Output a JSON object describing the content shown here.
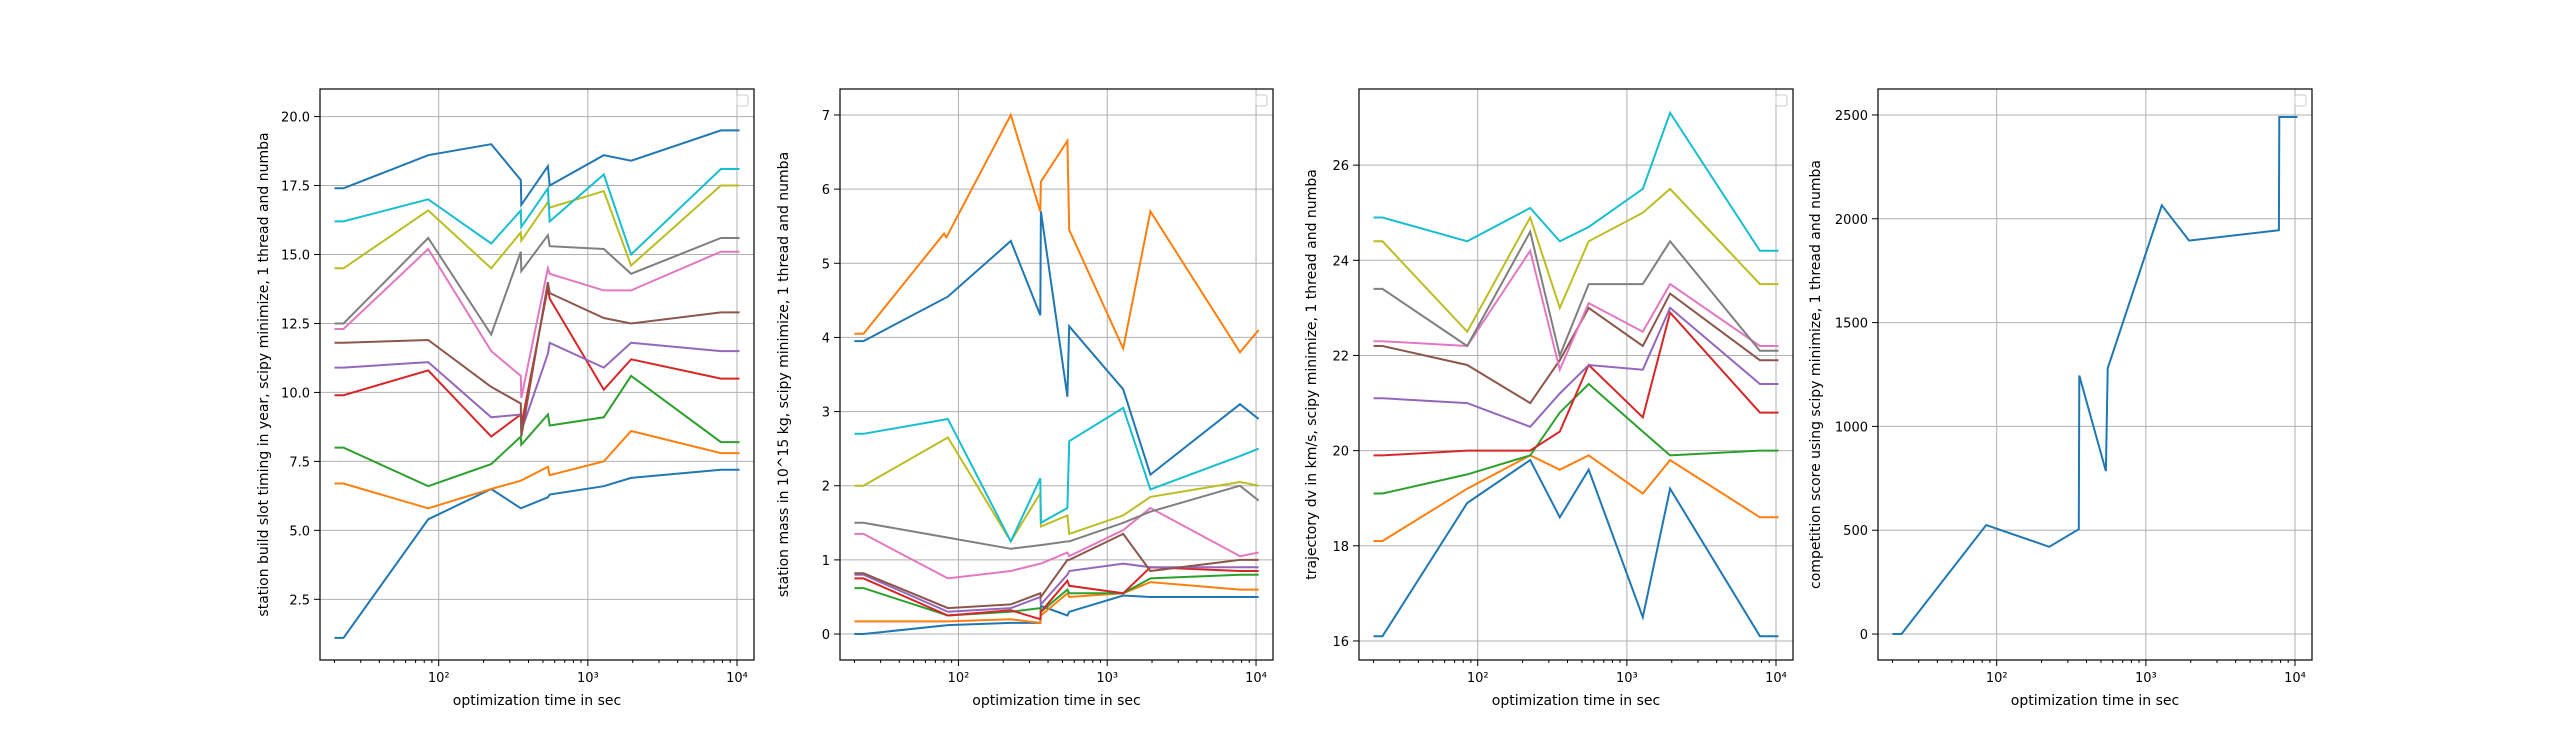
{
  "colors": [
    "#1f77b4",
    "#ff7f0e",
    "#2ca02c",
    "#d62728",
    "#9467bd",
    "#8c564b",
    "#e377c2",
    "#7f7f7f",
    "#bcbd22",
    "#17becf"
  ],
  "chart_data": [
    {
      "type": "line",
      "xscale": "log",
      "xlim": [
        16,
        13000
      ],
      "ylim": [
        0.3,
        21.0
      ],
      "xticks": [
        100,
        1000,
        10000
      ],
      "xtick_labels": [
        "10²",
        "10³",
        "10⁴"
      ],
      "yticks": [
        2.5,
        5.0,
        7.5,
        10.0,
        12.5,
        15.0,
        17.5,
        20.0
      ],
      "ytick_labels": [
        "2.5",
        "5.0",
        "7.5",
        "10.0",
        "12.5",
        "15.0",
        "17.5",
        "20.0"
      ],
      "xlabel": "optimization time in sec",
      "ylabel": "station build slot timing in year, scipy minimize, 1 thread and numba",
      "grid": true,
      "legend": "top-right (empty)",
      "series": [
        {
          "x": [
            20,
            23,
            85,
            225,
            355,
            540,
            555,
            1280,
            1950,
            7800,
            10400
          ],
          "y": [
            1.1,
            1.1,
            5.4,
            6.5,
            5.8,
            6.2,
            6.3,
            6.6,
            6.9,
            7.2,
            7.2
          ]
        },
        {
          "x": [
            20,
            23,
            85,
            225,
            355,
            540,
            555,
            1280,
            1950,
            7800,
            10400
          ],
          "y": [
            6.7,
            6.7,
            5.8,
            6.5,
            6.8,
            7.3,
            7.0,
            7.5,
            8.6,
            7.8,
            7.8
          ]
        },
        {
          "x": [
            20,
            23,
            85,
            225,
            355,
            358,
            540,
            555,
            1280,
            1950,
            7800,
            10400
          ],
          "y": [
            8.0,
            8.0,
            6.6,
            7.4,
            8.4,
            8.1,
            9.2,
            8.8,
            9.1,
            10.6,
            8.2,
            8.2
          ]
        },
        {
          "x": [
            20,
            23,
            85,
            225,
            355,
            358,
            540,
            555,
            1280,
            1950,
            7800,
            10400
          ],
          "y": [
            9.9,
            9.9,
            10.8,
            8.4,
            9.2,
            8.8,
            13.8,
            13.4,
            10.1,
            11.2,
            10.5,
            10.5
          ]
        },
        {
          "x": [
            20,
            23,
            85,
            225,
            355,
            358,
            540,
            555,
            1280,
            1950,
            7800,
            10400
          ],
          "y": [
            10.9,
            10.9,
            11.1,
            9.1,
            9.2,
            8.6,
            11.4,
            11.8,
            10.9,
            11.8,
            11.5,
            11.5
          ]
        },
        {
          "x": [
            20,
            23,
            85,
            225,
            355,
            358,
            540,
            555,
            1280,
            1950,
            7800,
            10400
          ],
          "y": [
            11.8,
            11.8,
            11.9,
            10.2,
            9.6,
            8.4,
            14.0,
            13.6,
            12.7,
            12.5,
            12.9,
            12.9
          ]
        },
        {
          "x": [
            20,
            23,
            85,
            225,
            355,
            358,
            540,
            555,
            1280,
            1950,
            7800,
            10400
          ],
          "y": [
            12.3,
            12.3,
            15.2,
            11.5,
            10.6,
            9.8,
            14.5,
            14.3,
            13.7,
            13.7,
            15.1,
            15.1
          ]
        },
        {
          "x": [
            20,
            23,
            85,
            225,
            355,
            358,
            540,
            555,
            1280,
            1950,
            7800,
            10400
          ],
          "y": [
            12.5,
            12.5,
            15.6,
            12.1,
            15.1,
            14.4,
            15.7,
            15.3,
            15.2,
            14.3,
            15.6,
            15.6
          ]
        },
        {
          "x": [
            20,
            23,
            85,
            225,
            355,
            358,
            540,
            555,
            1280,
            1950,
            7800,
            10400
          ],
          "y": [
            14.5,
            14.5,
            16.6,
            14.5,
            15.8,
            15.5,
            16.9,
            16.7,
            17.3,
            14.6,
            17.5,
            17.5
          ]
        },
        {
          "x": [
            20,
            23,
            85,
            225,
            355,
            358,
            540,
            555,
            1280,
            1950,
            7800,
            10400
          ],
          "y": [
            16.2,
            16.2,
            17.0,
            15.4,
            16.6,
            16.0,
            17.4,
            16.2,
            17.9,
            15.0,
            18.1,
            18.1
          ]
        },
        {
          "x": [
            20,
            23,
            85,
            225,
            355,
            358,
            540,
            555,
            1280,
            1950,
            7800,
            10400
          ],
          "y": [
            17.4,
            17.4,
            18.6,
            19.0,
            17.7,
            16.8,
            18.2,
            17.5,
            18.6,
            18.4,
            19.5,
            19.5
          ]
        }
      ]
    },
    {
      "type": "line",
      "xscale": "log",
      "xlim": [
        16,
        13000
      ],
      "ylim": [
        -0.35,
        7.35
      ],
      "xticks": [
        100,
        1000,
        10000
      ],
      "xtick_labels": [
        "10²",
        "10³",
        "10⁴"
      ],
      "yticks": [
        0,
        1,
        2,
        3,
        4,
        5,
        6,
        7
      ],
      "ytick_labels": [
        "0",
        "1",
        "2",
        "3",
        "4",
        "5",
        "6",
        "7"
      ],
      "xlabel": "optimization time in sec",
      "ylabel": "station mass in 10^15 kg, scipy minimize, 1 thread and numba",
      "grid": true,
      "legend": "top-right (empty)",
      "series": [
        {
          "x": [
            20,
            23,
            85,
            225,
            355,
            358,
            540,
            555,
            1280,
            1950,
            7800,
            10400
          ],
          "y": [
            0.0,
            0.0,
            0.12,
            0.15,
            0.15,
            0.38,
            0.25,
            0.3,
            0.52,
            0.5,
            0.5,
            0.5
          ]
        },
        {
          "x": [
            20,
            23,
            85,
            225,
            355,
            358,
            540,
            555,
            1280,
            1950,
            7800,
            10400
          ],
          "y": [
            0.17,
            0.17,
            0.17,
            0.2,
            0.15,
            0.25,
            0.55,
            0.5,
            0.55,
            0.7,
            0.6,
            0.6
          ]
        },
        {
          "x": [
            20,
            23,
            85,
            225,
            355,
            358,
            540,
            555,
            1280,
            1950,
            7800,
            10400
          ],
          "y": [
            0.62,
            0.62,
            0.25,
            0.3,
            0.35,
            0.3,
            0.6,
            0.55,
            0.55,
            0.75,
            0.8,
            0.8
          ]
        },
        {
          "x": [
            20,
            23,
            85,
            225,
            355,
            358,
            540,
            555,
            1280,
            1950,
            7800,
            10400
          ],
          "y": [
            0.75,
            0.75,
            0.25,
            0.32,
            0.2,
            0.3,
            0.72,
            0.65,
            0.55,
            0.9,
            0.85,
            0.85
          ]
        },
        {
          "x": [
            20,
            23,
            85,
            225,
            355,
            358,
            540,
            555,
            1280,
            1950,
            7800,
            10400
          ],
          "y": [
            0.8,
            0.8,
            0.3,
            0.35,
            0.5,
            0.4,
            0.8,
            0.85,
            0.95,
            0.9,
            0.9,
            0.9
          ]
        },
        {
          "x": [
            20,
            23,
            85,
            225,
            355,
            358,
            540,
            555,
            1280,
            1950,
            7800,
            10400
          ],
          "y": [
            0.82,
            0.82,
            0.35,
            0.4,
            0.55,
            0.5,
            1.0,
            1.0,
            1.35,
            0.85,
            1.0,
            1.0
          ]
        },
        {
          "x": [
            20,
            23,
            85,
            225,
            355,
            358,
            540,
            555,
            1280,
            1950,
            7800,
            10400
          ],
          "y": [
            1.35,
            1.35,
            0.75,
            0.85,
            0.95,
            0.95,
            1.1,
            1.05,
            1.4,
            1.7,
            1.05,
            1.1
          ]
        },
        {
          "x": [
            20,
            23,
            85,
            225,
            355,
            358,
            540,
            555,
            1280,
            1950,
            7800,
            10400
          ],
          "y": [
            1.5,
            1.5,
            1.3,
            1.15,
            1.2,
            1.2,
            1.25,
            1.25,
            1.5,
            1.65,
            2.0,
            1.8
          ]
        },
        {
          "x": [
            20,
            23,
            85,
            225,
            355,
            358,
            540,
            555,
            1280,
            1950,
            7800,
            10400
          ],
          "y": [
            2.0,
            2.0,
            2.65,
            1.25,
            1.9,
            1.45,
            1.6,
            1.35,
            1.6,
            1.85,
            2.05,
            2.0
          ]
        },
        {
          "x": [
            20,
            23,
            85,
            225,
            355,
            358,
            540,
            555,
            1280,
            1950,
            7800,
            10400
          ],
          "y": [
            2.7,
            2.7,
            2.9,
            1.25,
            2.1,
            1.5,
            1.7,
            2.6,
            3.05,
            1.95,
            2.4,
            2.5
          ]
        },
        {
          "x": [
            20,
            23,
            85,
            225,
            355,
            358,
            540,
            555,
            1280,
            1950,
            7800,
            10400
          ],
          "y": [
            3.95,
            3.95,
            4.55,
            5.3,
            4.3,
            5.7,
            3.2,
            4.15,
            3.3,
            2.15,
            3.1,
            2.9
          ]
        },
        {
          "x": [
            20,
            23,
            80,
            83,
            225,
            355,
            358,
            540,
            555,
            1280,
            1950,
            7800,
            10400
          ],
          "y": [
            4.05,
            4.05,
            5.4,
            5.35,
            7.0,
            5.7,
            6.1,
            6.65,
            5.45,
            3.85,
            5.7,
            3.8,
            4.1
          ]
        }
      ]
    },
    {
      "type": "line",
      "xscale": "log",
      "xlim": [
        16,
        13000
      ],
      "ylim": [
        15.6,
        27.6
      ],
      "xticks": [
        100,
        1000,
        10000
      ],
      "xtick_labels": [
        "10²",
        "10³",
        "10⁴"
      ],
      "yticks": [
        16,
        18,
        20,
        22,
        24,
        26
      ],
      "ytick_labels": [
        "16",
        "18",
        "20",
        "22",
        "24",
        "26"
      ],
      "xlabel": "optimization time in sec",
      "ylabel": "trajectory dv in km/s, scipy minimize, 1 thread and numba",
      "grid": true,
      "legend": "top-right (empty)",
      "series": [
        {
          "x": [
            20,
            23,
            85,
            225,
            355,
            555,
            1280,
            1950,
            7800,
            10400
          ],
          "y": [
            16.1,
            16.1,
            18.9,
            19.8,
            18.6,
            19.6,
            16.5,
            19.2,
            16.1,
            16.1
          ]
        },
        {
          "x": [
            20,
            23,
            85,
            225,
            355,
            555,
            1280,
            1950,
            7800,
            10400
          ],
          "y": [
            18.1,
            18.1,
            19.2,
            19.9,
            19.6,
            19.9,
            19.1,
            19.8,
            18.6,
            18.6
          ]
        },
        {
          "x": [
            20,
            23,
            85,
            225,
            355,
            555,
            1280,
            1950,
            7800,
            10400
          ],
          "y": [
            19.1,
            19.1,
            19.5,
            19.9,
            20.8,
            21.4,
            20.4,
            19.9,
            20.0,
            20.0
          ]
        },
        {
          "x": [
            20,
            23,
            85,
            225,
            355,
            555,
            1280,
            1950,
            7800,
            10400
          ],
          "y": [
            19.9,
            19.9,
            20.0,
            20.0,
            20.4,
            21.8,
            20.7,
            22.9,
            20.8,
            20.8
          ]
        },
        {
          "x": [
            20,
            23,
            85,
            225,
            355,
            555,
            1280,
            1950,
            7800,
            10400
          ],
          "y": [
            21.1,
            21.1,
            21.0,
            20.5,
            21.2,
            21.8,
            21.7,
            23.0,
            21.4,
            21.4
          ]
        },
        {
          "x": [
            20,
            23,
            85,
            225,
            355,
            555,
            1280,
            1950,
            7800,
            10400
          ],
          "y": [
            22.2,
            22.2,
            21.8,
            21.0,
            21.9,
            23.0,
            22.2,
            23.3,
            21.9,
            21.9
          ]
        },
        {
          "x": [
            20,
            23,
            85,
            225,
            355,
            555,
            1280,
            1950,
            7800,
            10400
          ],
          "y": [
            22.3,
            22.3,
            22.2,
            24.2,
            21.7,
            23.1,
            22.5,
            23.5,
            22.2,
            22.2
          ]
        },
        {
          "x": [
            20,
            23,
            85,
            225,
            355,
            555,
            1280,
            1950,
            7800,
            10400
          ],
          "y": [
            23.4,
            23.4,
            22.2,
            24.6,
            22.0,
            23.5,
            23.5,
            24.4,
            22.1,
            22.1
          ]
        },
        {
          "x": [
            20,
            23,
            85,
            225,
            355,
            555,
            1280,
            1950,
            7800,
            10400
          ],
          "y": [
            24.4,
            24.4,
            22.5,
            24.9,
            23.0,
            24.4,
            25.0,
            25.5,
            23.5,
            23.5
          ]
        },
        {
          "x": [
            20,
            23,
            85,
            225,
            355,
            555,
            1280,
            1950,
            7800,
            10400
          ],
          "y": [
            24.9,
            24.9,
            24.4,
            25.1,
            24.4,
            24.7,
            25.5,
            27.1,
            24.2,
            24.2
          ]
        }
      ]
    },
    {
      "type": "line",
      "xscale": "log",
      "xlim": [
        16,
        13000
      ],
      "ylim": [
        -125,
        2625
      ],
      "xticks": [
        100,
        1000,
        10000
      ],
      "xtick_labels": [
        "10²",
        "10³",
        "10⁴"
      ],
      "yticks": [
        0,
        500,
        1000,
        1500,
        2000,
        2500
      ],
      "ytick_labels": [
        "0",
        "500",
        "1000",
        "1500",
        "2000",
        "2500"
      ],
      "xlabel": "optimization time in sec",
      "ylabel": "competition score using scipy minimize, 1 thread and numba",
      "grid": true,
      "legend": "top-right (empty)",
      "series": [
        {
          "x": [
            20,
            23,
            85,
            225,
            355,
            358,
            540,
            555,
            1280,
            1950,
            7800,
            7850,
            10400
          ],
          "y": [
            0,
            0,
            525,
            420,
            505,
            1245,
            785,
            1280,
            2065,
            1895,
            1945,
            2490,
            2490
          ]
        }
      ]
    }
  ]
}
